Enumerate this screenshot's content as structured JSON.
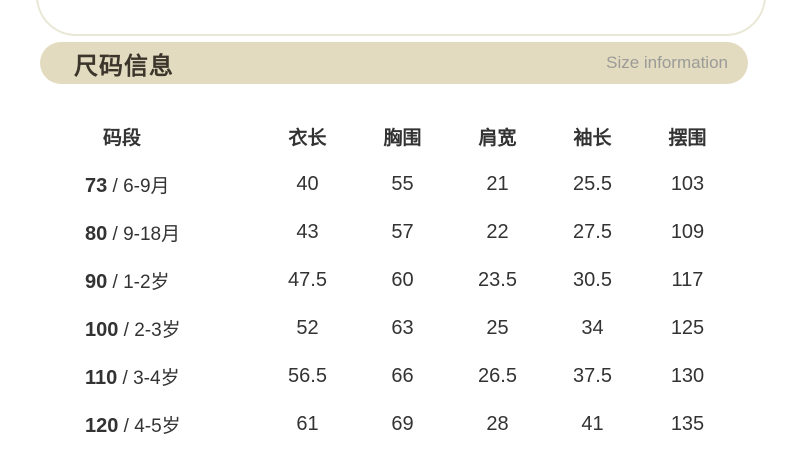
{
  "header": {
    "title": "尺码信息",
    "subtitle": "Size information"
  },
  "colors": {
    "bar": "#e3dbbf",
    "title": "#3b352b",
    "subtitle": "#9b9b98",
    "text": "#333333",
    "arc": "#e9e8d6"
  },
  "chart_data": {
    "type": "table",
    "title": "尺码信息",
    "separator": " / ",
    "columns": [
      "码段",
      "衣长",
      "胸围",
      "肩宽",
      "袖长",
      "摆围"
    ],
    "rows": [
      {
        "size": "73",
        "age": "6-9月",
        "values": [
          "40",
          "55",
          "21",
          "25.5",
          "103"
        ]
      },
      {
        "size": "80",
        "age": "9-18月",
        "values": [
          "43",
          "57",
          "22",
          "27.5",
          "109"
        ]
      },
      {
        "size": "90",
        "age": "1-2岁",
        "values": [
          "47.5",
          "60",
          "23.5",
          "30.5",
          "117"
        ]
      },
      {
        "size": "100",
        "age": "2-3岁",
        "values": [
          "52",
          "63",
          "25",
          "34",
          "125"
        ]
      },
      {
        "size": "110",
        "age": "3-4岁",
        "values": [
          "56.5",
          "66",
          "26.5",
          "37.5",
          "130"
        ]
      },
      {
        "size": "120",
        "age": "4-5岁",
        "values": [
          "61",
          "69",
          "28",
          "41",
          "135"
        ]
      }
    ]
  }
}
